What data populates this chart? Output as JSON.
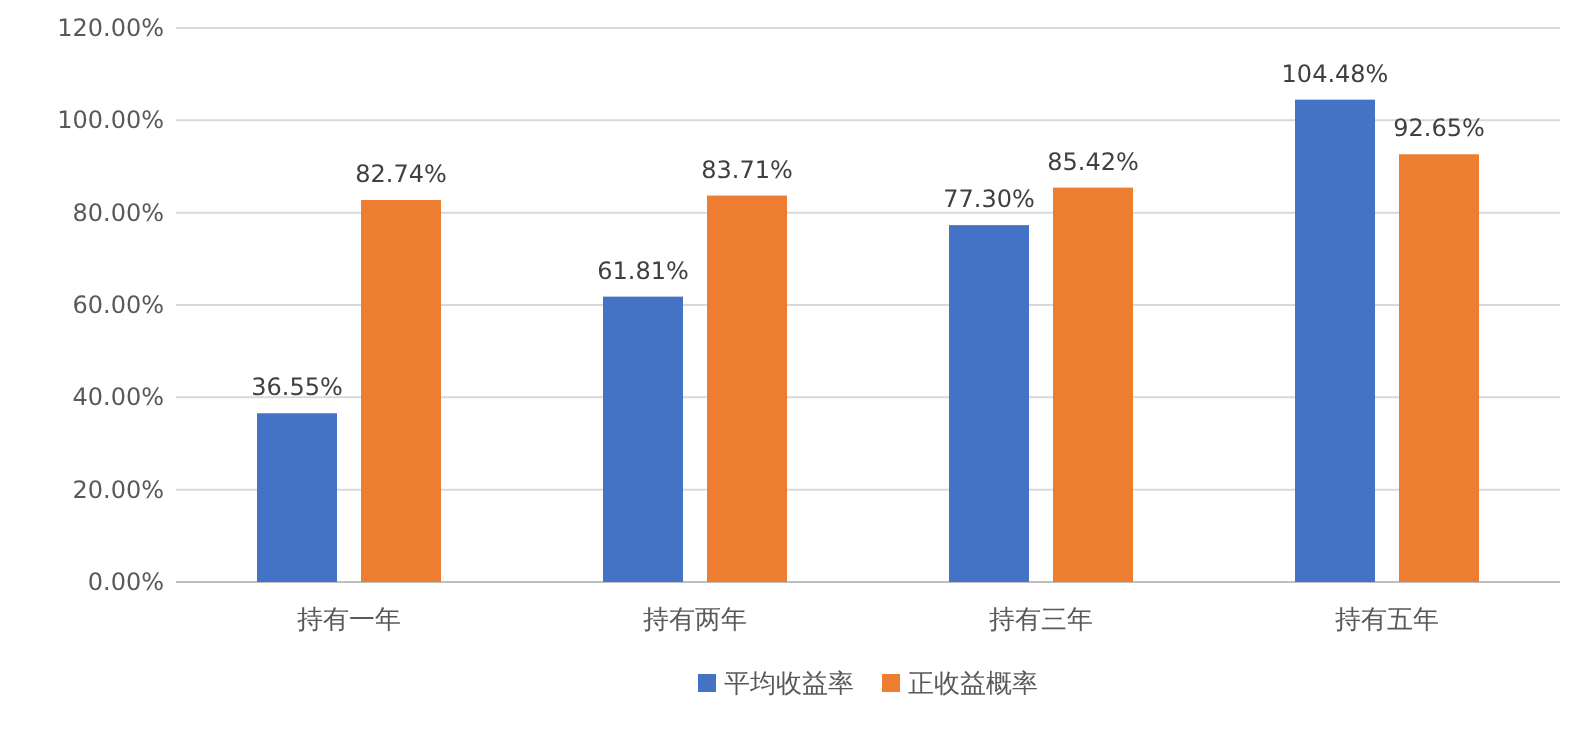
{
  "chart_data": {
    "type": "bar",
    "categories": [
      "持有一年",
      "持有两年",
      "持有三年",
      "持有五年"
    ],
    "series": [
      {
        "name": "平均收益率",
        "color": "#4472c4",
        "values": [
          36.55,
          61.81,
          77.3,
          104.48
        ],
        "value_labels": [
          "36.55%",
          "61.81%",
          "77.30%",
          "104.48%"
        ]
      },
      {
        "name": "正收益概率",
        "color": "#ed7d31",
        "values": [
          82.74,
          83.71,
          85.42,
          92.65
        ],
        "value_labels": [
          "82.74%",
          "83.71%",
          "85.42%",
          "92.65%"
        ]
      }
    ],
    "ylim": [
      0,
      120
    ],
    "yticks": [
      {
        "value": 0,
        "label": "0.00%"
      },
      {
        "value": 20,
        "label": "20.00%"
      },
      {
        "value": 40,
        "label": "40.00%"
      },
      {
        "value": 60,
        "label": "60.00%"
      },
      {
        "value": 80,
        "label": "80.00%"
      },
      {
        "value": 100,
        "label": "100.00%"
      },
      {
        "value": 120,
        "label": "120.00%"
      }
    ],
    "grid": "y",
    "legend": "bottom"
  }
}
